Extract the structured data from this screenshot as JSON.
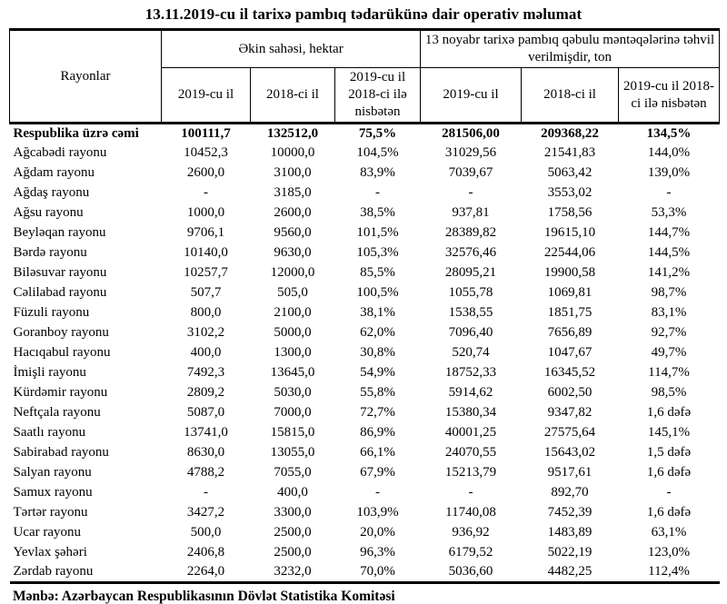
{
  "title": "13.11.2019-cu il tarixə pambıq tədarükünə dair operativ məlumat",
  "table": {
    "col1_header": "Rayonlar",
    "group1_header": "Əkin sahəsi, hektar",
    "group2_header": "13 noyabr tarixə pambıq qəbulu məntəqələrinə təhvil verilmişdir, ton",
    "sub_headers": [
      "2019-cu il",
      "2018-ci il",
      "2019-cu il 2018-ci ilə nisbətən",
      "2019-cu il",
      "2018-ci il",
      "2019-cu il 2018-ci ilə nisbətən"
    ],
    "rows": [
      {
        "label": "Respublika üzrə cəmi",
        "bold": true,
        "values": [
          "100111,7",
          "132512,0",
          "75,5%",
          "281506,00",
          "209368,22",
          "134,5%"
        ]
      },
      {
        "label": "Ağcabədi rayonu",
        "values": [
          "10452,3",
          "10000,0",
          "104,5%",
          "31029,56",
          "21541,83",
          "144,0%"
        ]
      },
      {
        "label": "Ağdam rayonu",
        "values": [
          "2600,0",
          "3100,0",
          "83,9%",
          "7039,67",
          "5063,42",
          "139,0%"
        ]
      },
      {
        "label": "Ağdaş rayonu",
        "values": [
          "-",
          "3185,0",
          "-",
          "-",
          "3553,02",
          "-"
        ]
      },
      {
        "label": "Ağsu rayonu",
        "values": [
          "1000,0",
          "2600,0",
          "38,5%",
          "937,81",
          "1758,56",
          "53,3%"
        ]
      },
      {
        "label": "Beyləqan rayonu",
        "values": [
          "9706,1",
          "9560,0",
          "101,5%",
          "28389,82",
          "19615,10",
          "144,7%"
        ]
      },
      {
        "label": "Bərdə rayonu",
        "values": [
          "10140,0",
          "9630,0",
          "105,3%",
          "32576,46",
          "22544,06",
          "144,5%"
        ]
      },
      {
        "label": "Biləsuvar rayonu",
        "values": [
          "10257,7",
          "12000,0",
          "85,5%",
          "28095,21",
          "19900,58",
          "141,2%"
        ]
      },
      {
        "label": "Cəlilabad rayonu",
        "values": [
          "507,7",
          "505,0",
          "100,5%",
          "1055,78",
          "1069,81",
          "98,7%"
        ]
      },
      {
        "label": "Füzuli rayonu",
        "values": [
          "800,0",
          "2100,0",
          "38,1%",
          "1538,55",
          "1851,75",
          "83,1%"
        ]
      },
      {
        "label": "Goranboy rayonu",
        "values": [
          "3102,2",
          "5000,0",
          "62,0%",
          "7096,40",
          "7656,89",
          "92,7%"
        ]
      },
      {
        "label": "Hacıqabul rayonu",
        "values": [
          "400,0",
          "1300,0",
          "30,8%",
          "520,74",
          "1047,67",
          "49,7%"
        ]
      },
      {
        "label": "İmişli rayonu",
        "values": [
          "7492,3",
          "13645,0",
          "54,9%",
          "18752,33",
          "16345,52",
          "114,7%"
        ]
      },
      {
        "label": "Kürdəmir rayonu",
        "values": [
          "2809,2",
          "5030,0",
          "55,8%",
          "5914,62",
          "6002,50",
          "98,5%"
        ]
      },
      {
        "label": "Neftçala rayonu",
        "values": [
          "5087,0",
          "7000,0",
          "72,7%",
          "15380,34",
          "9347,82",
          "1,6 dəfə"
        ]
      },
      {
        "label": "Saatlı rayonu",
        "values": [
          "13741,0",
          "15815,0",
          "86,9%",
          "40001,25",
          "27575,64",
          "145,1%"
        ]
      },
      {
        "label": "Sabirabad rayonu",
        "values": [
          "8630,0",
          "13055,0",
          "66,1%",
          "24070,55",
          "15643,02",
          "1,5 dəfə"
        ]
      },
      {
        "label": "Salyan rayonu",
        "values": [
          "4788,2",
          "7055,0",
          "67,9%",
          "15213,79",
          "9517,61",
          "1,6 dəfə"
        ]
      },
      {
        "label": "Samux rayonu",
        "values": [
          "-",
          "400,0",
          "-",
          "-",
          "892,70",
          "-"
        ]
      },
      {
        "label": "Tərtər rayonu",
        "values": [
          "3427,2",
          "3300,0",
          "103,9%",
          "11740,08",
          "7452,39",
          "1,6 dəfə"
        ]
      },
      {
        "label": "Ucar rayonu",
        "values": [
          "500,0",
          "2500,0",
          "20,0%",
          "936,92",
          "1483,89",
          "63,1%"
        ]
      },
      {
        "label": "Yevlax şəhəri",
        "values": [
          "2406,8",
          "2500,0",
          "96,3%",
          "6179,52",
          "5022,19",
          "123,0%"
        ]
      },
      {
        "label": "Zərdab rayonu",
        "values": [
          "2264,0",
          "3232,0",
          "70,0%",
          "5036,60",
          "4482,25",
          "112,4%"
        ]
      }
    ]
  },
  "footer": {
    "source": "Mənbə: Azərbaycan Respublikasının Dövlət Statistika Komitəsi"
  }
}
